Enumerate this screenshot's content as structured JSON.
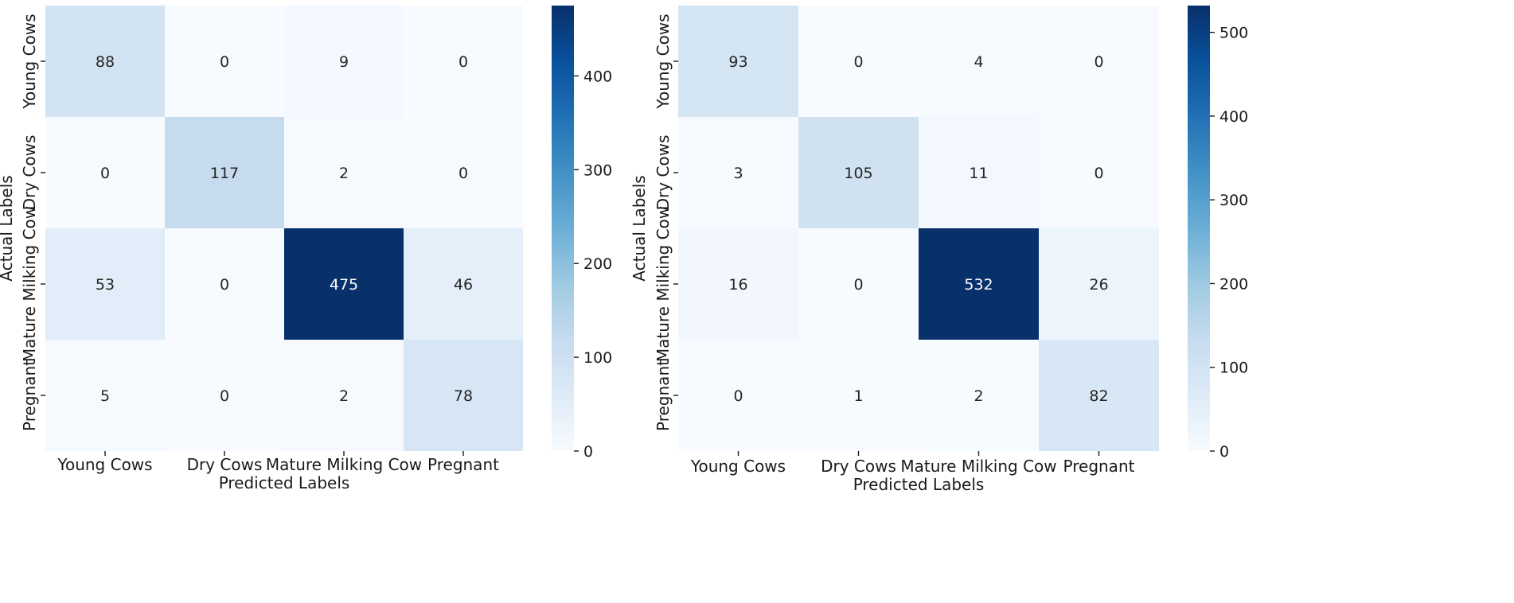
{
  "chart_data": [
    {
      "type": "heatmap",
      "title": "",
      "xlabel": "Predicted Labels",
      "ylabel": "Actual Labels",
      "x_categories": [
        "Young Cows",
        "Dry Cows",
        "Mature Milking Cow",
        "Pregnant"
      ],
      "y_categories": [
        "Young Cows",
        "Dry Cows",
        "Mature Milking Cow",
        "Pregnant"
      ],
      "values": [
        [
          88,
          0,
          9,
          0
        ],
        [
          0,
          117,
          2,
          0
        ],
        [
          53,
          0,
          475,
          46
        ],
        [
          5,
          0,
          2,
          78
        ]
      ],
      "colormap": "Blues",
      "colorbar": {
        "min": 0,
        "max": 475,
        "ticks": [
          0,
          100,
          200,
          300,
          400
        ]
      }
    },
    {
      "type": "heatmap",
      "title": "",
      "xlabel": "Predicted Labels",
      "ylabel": "Actual Labels",
      "x_categories": [
        "Young Cows",
        "Dry Cows",
        "Mature Milking Cow",
        "Pregnant"
      ],
      "y_categories": [
        "Young Cows",
        "Dry Cows",
        "Mature Milking Cow",
        "Pregnant"
      ],
      "values": [
        [
          93,
          0,
          4,
          0
        ],
        [
          3,
          105,
          11,
          0
        ],
        [
          16,
          0,
          532,
          26
        ],
        [
          0,
          1,
          2,
          82
        ]
      ],
      "colormap": "Blues",
      "colorbar": {
        "min": 0,
        "max": 532,
        "ticks": [
          0,
          100,
          200,
          300,
          400,
          500
        ]
      }
    }
  ],
  "colors": {
    "low": "#f7fbff",
    "high": "#08306b",
    "text_dark": "#262626",
    "text_light": "#ffffff",
    "axis": "#1a1a1a"
  }
}
